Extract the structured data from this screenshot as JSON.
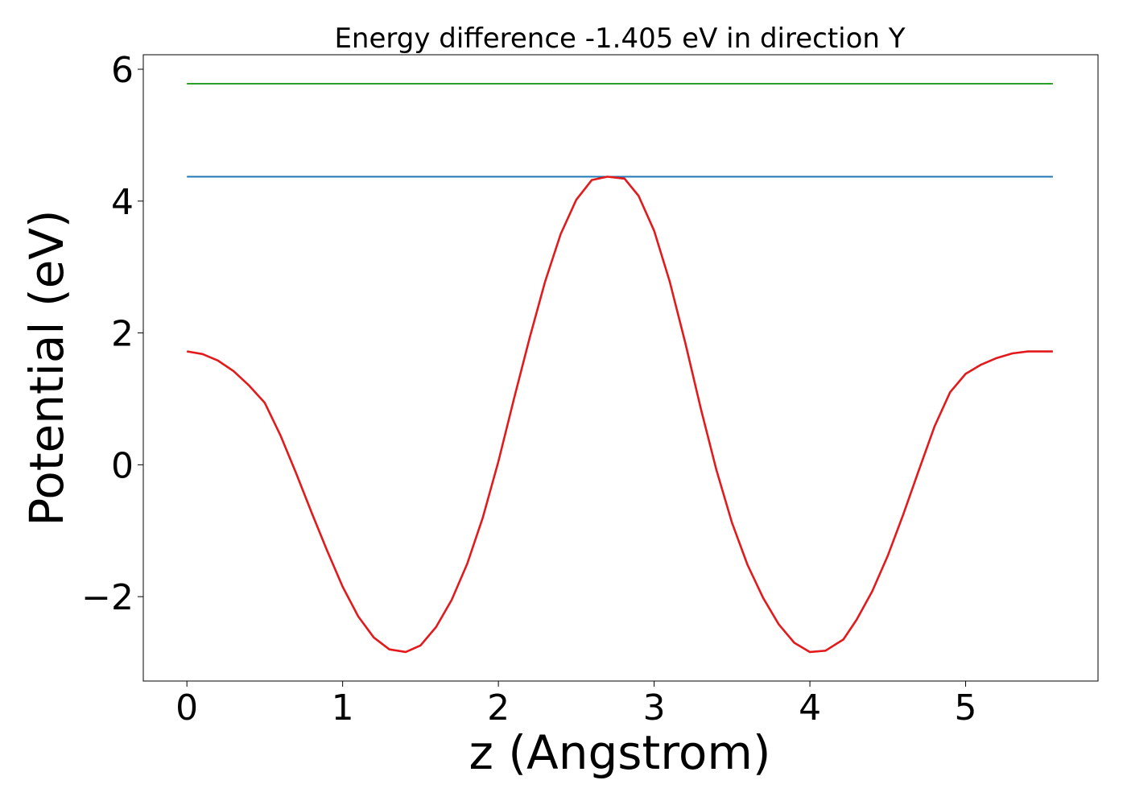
{
  "chart_data": {
    "type": "line",
    "title": "Energy difference -1.405 eV in direction Y",
    "xlabel": "z (Angstrom)",
    "ylabel": "Potential (eV)",
    "xlim": [
      -0.28,
      5.85
    ],
    "ylim": [
      -3.28,
      6.22
    ],
    "xticks": [
      0,
      1,
      2,
      3,
      4,
      5
    ],
    "xtick_labels": [
      "0",
      "1",
      "2",
      "3",
      "4",
      "5"
    ],
    "yticks": [
      -2,
      0,
      2,
      4,
      6
    ],
    "ytick_labels": [
      "−2",
      "0",
      "2",
      "4",
      "6"
    ],
    "grid": false,
    "series": [
      {
        "color": "#e31a1c",
        "x": [
          0,
          0.1,
          0.2,
          0.3,
          0.4,
          0.5,
          0.6,
          0.7,
          0.8,
          0.9,
          1.0,
          1.1,
          1.2,
          1.3,
          1.405,
          1.5,
          1.6,
          1.7,
          1.8,
          1.9,
          2.0,
          2.1,
          2.2,
          2.3,
          2.4,
          2.5,
          2.6,
          2.7,
          2.81,
          2.9,
          3.0,
          3.1,
          3.2,
          3.3,
          3.4,
          3.5,
          3.6,
          3.7,
          3.8,
          3.9,
          4.0,
          4.1,
          4.215,
          4.3,
          4.4,
          4.5,
          4.6,
          4.7,
          4.8,
          4.9,
          5.0,
          5.1,
          5.2,
          5.3,
          5.4,
          5.5,
          5.56
        ],
        "y": [
          1.72,
          1.68,
          1.58,
          1.42,
          1.2,
          0.94,
          0.45,
          -0.12,
          -0.72,
          -1.3,
          -1.85,
          -2.3,
          -2.62,
          -2.8,
          -2.84,
          -2.74,
          -2.46,
          -2.05,
          -1.5,
          -0.8,
          0.05,
          1.0,
          1.92,
          2.78,
          3.5,
          4.02,
          4.32,
          4.37,
          4.34,
          4.08,
          3.55,
          2.78,
          1.85,
          0.85,
          -0.08,
          -0.88,
          -1.52,
          -2.02,
          -2.42,
          -2.7,
          -2.84,
          -2.82,
          -2.65,
          -2.35,
          -1.92,
          -1.38,
          -0.75,
          -0.08,
          0.58,
          1.1,
          1.38,
          1.52,
          1.62,
          1.69,
          1.72,
          1.72,
          1.72
        ]
      },
      {
        "color": "#1f77b4",
        "x": [
          0,
          5.56
        ],
        "y": [
          4.37,
          4.37
        ]
      },
      {
        "color": "#2ca02c",
        "x": [
          0,
          5.56
        ],
        "y": [
          5.78,
          5.78
        ]
      }
    ]
  }
}
